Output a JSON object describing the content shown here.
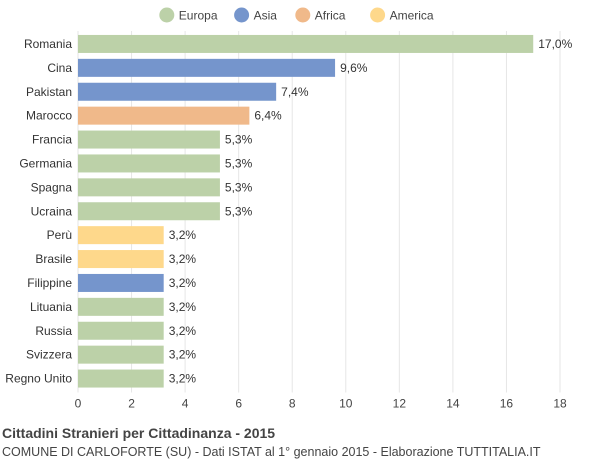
{
  "colors": {
    "Europa": "#bcd1a8",
    "Asia": "#7595cc",
    "Africa": "#f0b98a",
    "America": "#fed88b",
    "grid": "#e6e6e6",
    "text": "#333333"
  },
  "chart_data": {
    "type": "bar",
    "orientation": "horizontal",
    "legend": {
      "position": "top-center",
      "entries": [
        "Europa",
        "Asia",
        "Africa",
        "America"
      ]
    },
    "categories": [
      "Romania",
      "Cina",
      "Pakistan",
      "Marocco",
      "Francia",
      "Germania",
      "Spagna",
      "Ucraina",
      "Perù",
      "Brasile",
      "Filippine",
      "Lituania",
      "Russia",
      "Svizzera",
      "Regno Unito"
    ],
    "values": [
      17.0,
      9.6,
      7.4,
      6.4,
      5.3,
      5.3,
      5.3,
      5.3,
      3.2,
      3.2,
      3.2,
      3.2,
      3.2,
      3.2,
      3.2
    ],
    "value_labels": [
      "17,0%",
      "9,6%",
      "7,4%",
      "6,4%",
      "5,3%",
      "5,3%",
      "5,3%",
      "5,3%",
      "3,2%",
      "3,2%",
      "3,2%",
      "3,2%",
      "3,2%",
      "3,2%",
      "3,2%"
    ],
    "groups": [
      "Europa",
      "Asia",
      "Asia",
      "Africa",
      "Europa",
      "Europa",
      "Europa",
      "Europa",
      "America",
      "America",
      "Asia",
      "Europa",
      "Europa",
      "Europa",
      "Europa"
    ],
    "xlim": [
      0,
      18
    ],
    "xticks": [
      0,
      2,
      4,
      6,
      8,
      10,
      12,
      14,
      16,
      18
    ],
    "grid": true
  },
  "footer": {
    "title": "Cittadini Stranieri per Cittadinanza - 2015",
    "subtitle": "COMUNE DI CARLOFORTE (SU) - Dati ISTAT al 1° gennaio 2015 - Elaborazione TUTTITALIA.IT"
  }
}
